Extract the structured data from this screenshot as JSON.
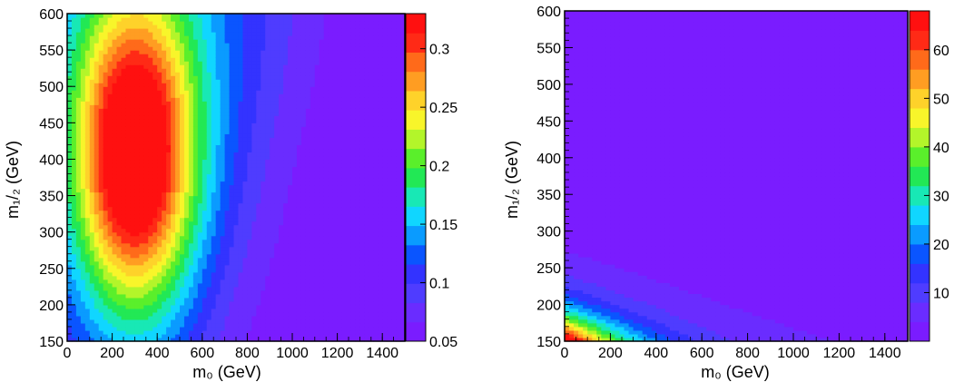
{
  "chart_data": [
    {
      "type": "heatmap",
      "title": "",
      "xlabel": "m₀ (GeV)",
      "ylabel": "m₁/₂ (GeV)",
      "xlim": [
        0,
        1500
      ],
      "ylim": [
        150,
        600
      ],
      "x_ticks": [
        "0",
        "200",
        "400",
        "600",
        "800",
        "1000",
        "1200",
        "1400"
      ],
      "y_ticks": [
        "150",
        "200",
        "250",
        "300",
        "350",
        "400",
        "450",
        "500",
        "550",
        "600"
      ],
      "color_scale": {
        "min": 0.05,
        "max": 0.33,
        "ticks": [
          "0.05",
          "0.1",
          "0.15",
          "0.2",
          "0.25",
          "0.3"
        ]
      },
      "features": [
        {
          "description": "peak region",
          "m0": 300,
          "m12": 380,
          "value": 0.32
        },
        {
          "description": "low region",
          "m0": 1400,
          "m12": 300,
          "value": 0.06
        }
      ]
    },
    {
      "type": "heatmap",
      "title": "",
      "xlabel": "m₀ (GeV)",
      "ylabel": "m₁/₂ (GeV)",
      "xlim": [
        0,
        1500
      ],
      "ylim": [
        150,
        600
      ],
      "x_ticks": [
        "0",
        "200",
        "400",
        "600",
        "800",
        "1000",
        "1200",
        "1400"
      ],
      "y_ticks": [
        "150",
        "200",
        "250",
        "300",
        "350",
        "400",
        "450",
        "500",
        "550",
        "600"
      ],
      "color_scale": {
        "min": 0,
        "max": 68,
        "ticks": [
          "10",
          "20",
          "30",
          "40",
          "50",
          "60"
        ]
      },
      "features": [
        {
          "description": "peak region",
          "m0": 0,
          "m12": 150,
          "value": 68
        },
        {
          "description": "background",
          "m0": 800,
          "m12": 450,
          "value": 2
        }
      ]
    }
  ],
  "palette": [
    "#7a1cff",
    "#6a2cff",
    "#4f3cff",
    "#3333ff",
    "#0a55ff",
    "#0a9bff",
    "#10d6ff",
    "#18e8b5",
    "#22e855",
    "#5aef2b",
    "#b3f52a",
    "#f8f52a",
    "#fed22a",
    "#ff9d22",
    "#ff6a1a",
    "#ff2a16",
    "#ff1010"
  ]
}
